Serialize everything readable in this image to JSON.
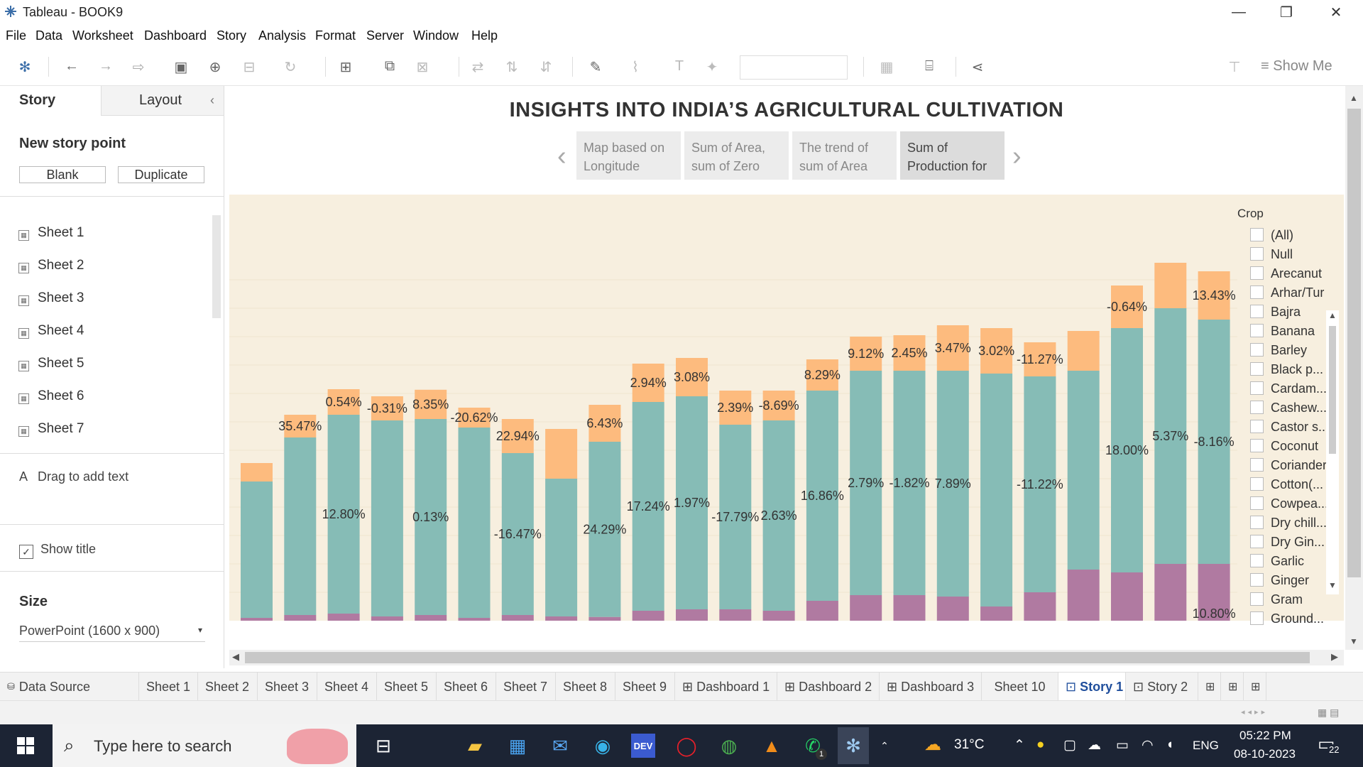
{
  "window": {
    "title": "Tableau - BOOK9"
  },
  "menu": [
    "File",
    "Data",
    "Worksheet",
    "Dashboard",
    "Story",
    "Analysis",
    "Format",
    "Server",
    "Window",
    "Help"
  ],
  "toolbar": {
    "show_me": "Show Me"
  },
  "left_pane": {
    "tabs": [
      "Story",
      "Layout"
    ],
    "new_story_point": "New story point",
    "blank_label": "Blank",
    "duplicate_label": "Duplicate",
    "sheets": [
      "Sheet 1",
      "Sheet 2",
      "Sheet 3",
      "Sheet 4",
      "Sheet 5",
      "Sheet 6",
      "Sheet 7"
    ],
    "drag_text": "Drag to add text",
    "show_title": "Show title",
    "size_label": "Size",
    "size_value": "PowerPoint (1600 x 900)"
  },
  "story": {
    "title": "INSIGHTS INTO INDIA’S AGRICULTURAL CULTIVATION",
    "points": [
      {
        "line1": "Map based on",
        "line2": "Longitude"
      },
      {
        "line1": "Sum of Area,",
        "line2": "sum of Zero"
      },
      {
        "line1": "The trend of",
        "line2": "sum of Area"
      },
      {
        "line1": "Sum of",
        "line2": "Production for"
      }
    ],
    "selected_point": 3
  },
  "chart_data": {
    "type": "bar",
    "stacked": true,
    "series_colors": {
      "top": "#fdbb7e",
      "middle": "#86bcb6",
      "bottom": "#b07aa1"
    },
    "bars": [
      {
        "total": 0.555,
        "mid": 0.49,
        "bot": 0.01,
        "top_label": "",
        "mid_label": ""
      },
      {
        "total": 0.725,
        "mid": 0.645,
        "bot": 0.02,
        "top_label": "35.47%",
        "mid_label": ""
      },
      {
        "total": 0.815,
        "mid": 0.725,
        "bot": 0.025,
        "top_label": "0.54%",
        "mid_label": "12.80%"
      },
      {
        "total": 0.79,
        "mid": 0.705,
        "bot": 0.015,
        "top_label": "-0.31%",
        "mid_label": ""
      },
      {
        "total": 0.813,
        "mid": 0.71,
        "bot": 0.02,
        "top_label": "8.35%",
        "mid_label": "0.13%"
      },
      {
        "total": 0.75,
        "mid": 0.68,
        "bot": 0.01,
        "top_label": "-20.62%",
        "mid_label": ""
      },
      {
        "total": 0.71,
        "mid": 0.59,
        "bot": 0.02,
        "top_label": "22.94%",
        "mid_label": "-16.47%"
      },
      {
        "total": 0.675,
        "mid": 0.5,
        "bot": 0.015,
        "top_label": "",
        "mid_label": ""
      },
      {
        "total": 0.76,
        "mid": 0.63,
        "bot": 0.013,
        "top_label": "6.43%",
        "mid_label": "24.29%"
      },
      {
        "total": 0.905,
        "mid": 0.77,
        "bot": 0.035,
        "top_label": "2.94%",
        "mid_label": "17.24%"
      },
      {
        "total": 0.925,
        "mid": 0.79,
        "bot": 0.04,
        "top_label": "3.08%",
        "mid_label": "1.97%"
      },
      {
        "total": 0.81,
        "mid": 0.69,
        "bot": 0.04,
        "top_label": "2.39%",
        "mid_label": "-17.79%"
      },
      {
        "total": 0.81,
        "mid": 0.705,
        "bot": 0.035,
        "top_label": "-8.69%",
        "mid_label": "2.63%"
      },
      {
        "total": 0.92,
        "mid": 0.81,
        "bot": 0.07,
        "top_label": "8.29%",
        "mid_label": "16.86%"
      },
      {
        "total": 1.0,
        "mid": 0.88,
        "bot": 0.09,
        "top_label": "9.12%",
        "mid_label": "2.79%"
      },
      {
        "total": 1.005,
        "mid": 0.88,
        "bot": 0.09,
        "top_label": "2.45%",
        "mid_label": "-1.82%"
      },
      {
        "total": 1.04,
        "mid": 0.88,
        "bot": 0.085,
        "top_label": "3.47%",
        "mid_label": "7.89%"
      },
      {
        "total": 1.03,
        "mid": 0.87,
        "bot": 0.05,
        "top_label": "3.02%",
        "mid_label": ""
      },
      {
        "total": 0.98,
        "mid": 0.86,
        "bot": 0.1,
        "top_label": "-11.27%",
        "mid_label": "-11.22%"
      },
      {
        "total": 1.02,
        "mid": 0.88,
        "bot": 0.18,
        "top_label": "",
        "mid_label": ""
      },
      {
        "total": 1.18,
        "mid": 1.03,
        "bot": 0.17,
        "top_label": "-0.64%",
        "mid_label": "18.00%"
      },
      {
        "total": 1.26,
        "mid": 1.1,
        "bot": 0.2,
        "top_label": "",
        "mid_label": "5.37%"
      },
      {
        "total": 1.23,
        "mid": 1.06,
        "bot": 0.2,
        "top_label": "13.43%",
        "mid_label": "-8.16%"
      }
    ],
    "bottom_labels": [
      {
        "index": 22,
        "text": "10.80%"
      }
    ]
  },
  "legend": {
    "title": "Crop",
    "items": [
      "(All)",
      "Null",
      "Arecanut",
      "Arhar/Tur",
      "Bajra",
      "Banana",
      "Barley",
      "Black p...",
      "Cardam...",
      "Cashew...",
      "Castor s...",
      "Coconut",
      "Coriander",
      "Cotton(...",
      "Cowpea...",
      "Dry chill...",
      "Dry Gin...",
      "Garlic",
      "Ginger",
      "Gram",
      "Ground..."
    ]
  },
  "bottom_tabs": [
    "Data Source",
    "Sheet 1",
    "Sheet 2",
    "Sheet 3",
    "Sheet 4",
    "Sheet 5",
    "Sheet 6",
    "Sheet 7",
    "Sheet 8",
    "Sheet 9",
    "Dashboard 1",
    "Dashboard 2",
    "Dashboard 3",
    "Sheet 10",
    "Story 1",
    "Story 2"
  ],
  "active_tab": "Story 1",
  "taskbar": {
    "search_placeholder": "Type here to search",
    "weather": "31°C",
    "language": "ENG",
    "time": "05:22 PM",
    "date": "08-10-2023",
    "notifications": "22",
    "whatsapp_badge": "1"
  }
}
